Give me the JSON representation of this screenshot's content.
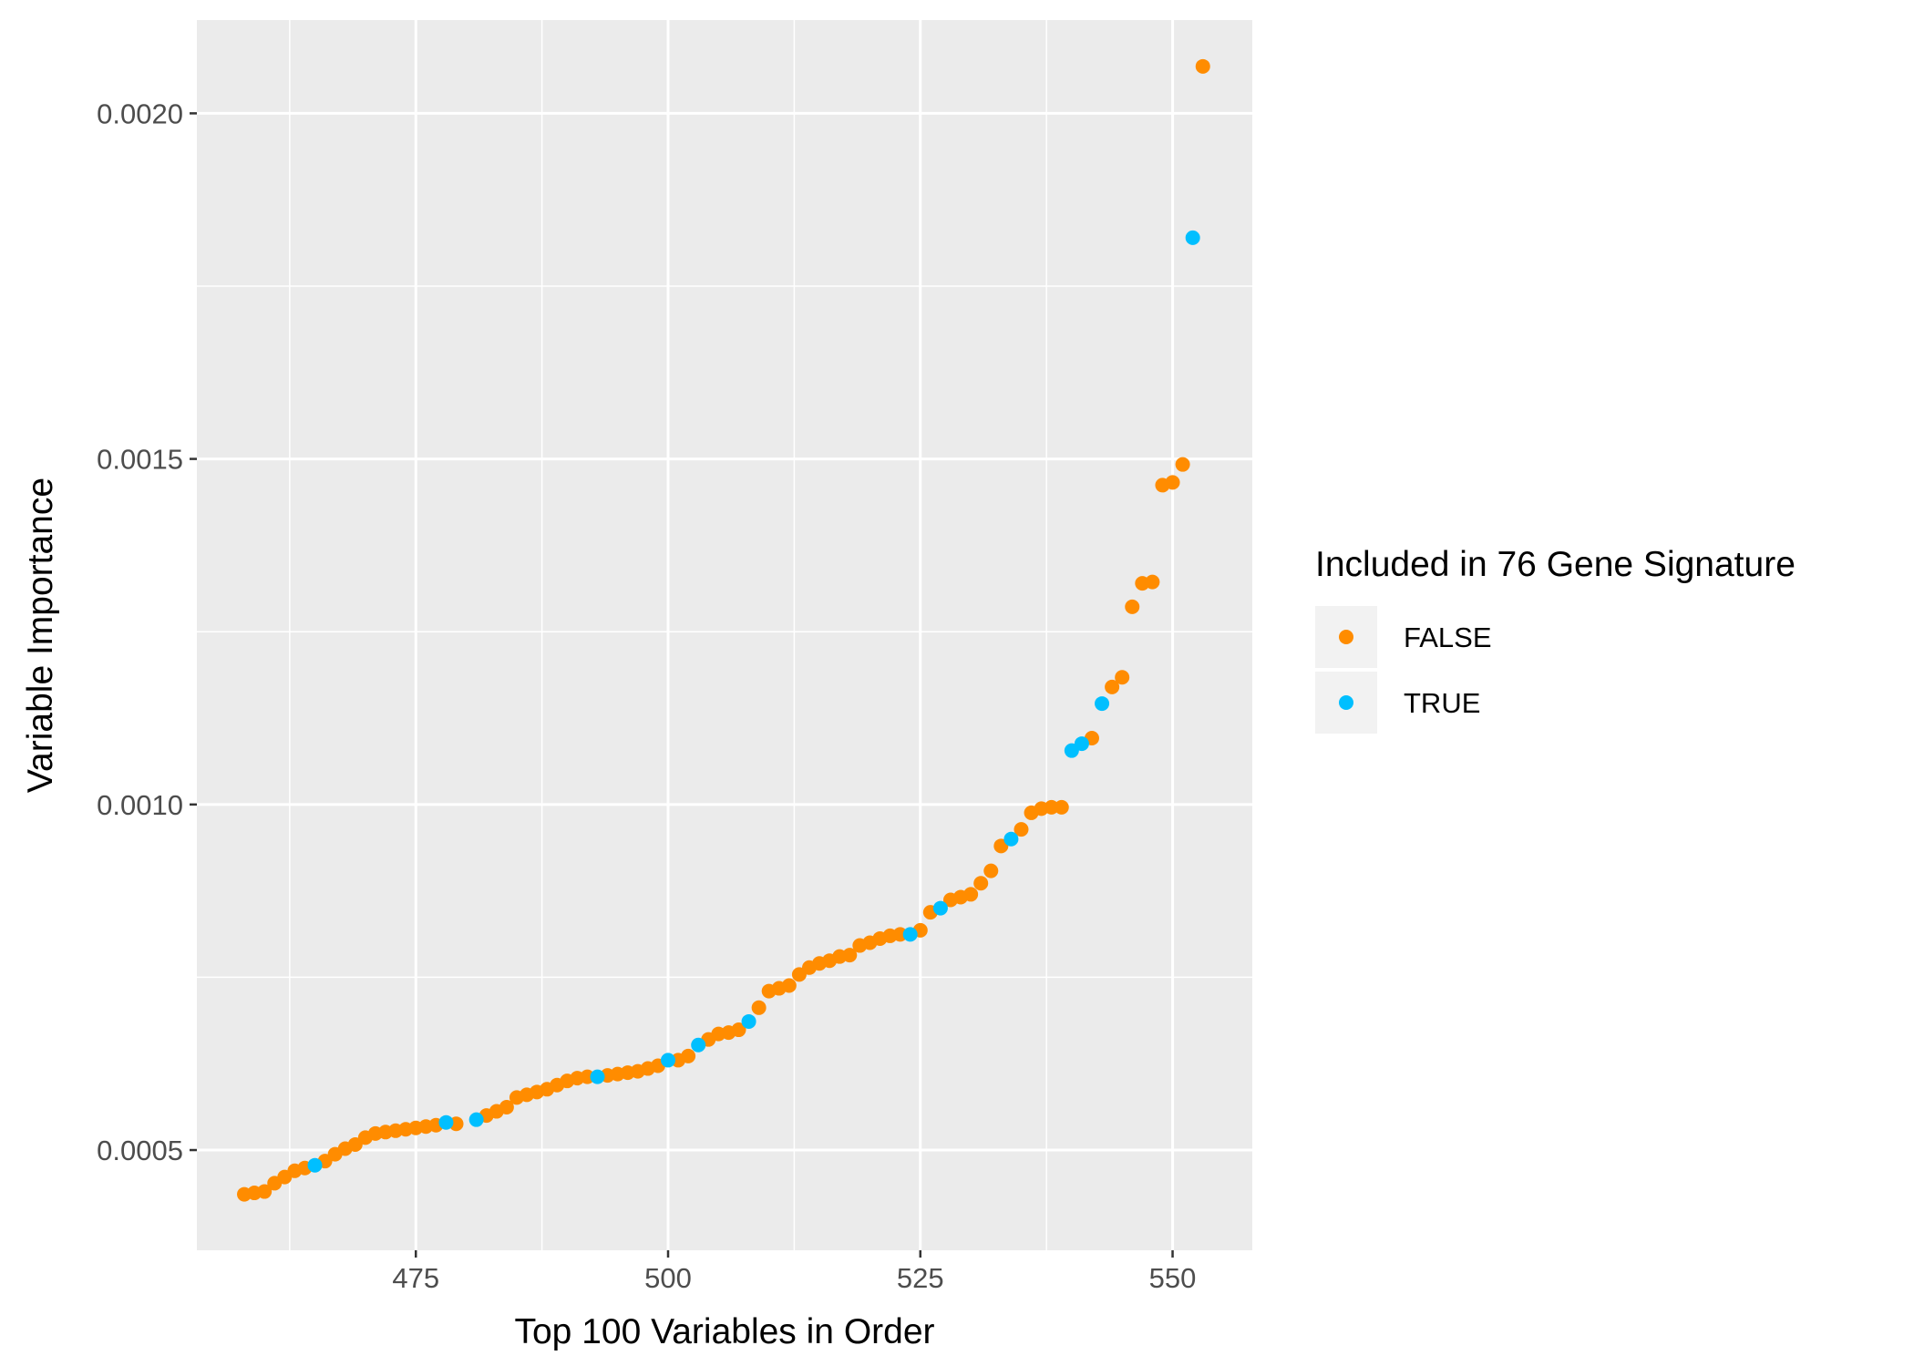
{
  "chart_data": {
    "type": "scatter",
    "xlabel": "Top 100 Variables in Order",
    "ylabel": "Variable Importance",
    "xlim": [
      453.3,
      557.9
    ],
    "ylim": [
      0.000355,
      0.002135
    ],
    "x_ticks": [
      475,
      500,
      525,
      550
    ],
    "x_tick_labels": [
      "475",
      "500",
      "525",
      "550"
    ],
    "x_minor_ticks": [
      462.5,
      487.5,
      512.5,
      537.5
    ],
    "y_ticks": [
      0.0005,
      0.001,
      0.0015,
      0.002
    ],
    "y_tick_labels": [
      "0.0005",
      "0.0010",
      "0.0015",
      "0.0020"
    ],
    "y_minor_ticks": [
      0.00075,
      0.00125,
      0.00175
    ],
    "grid": true,
    "legend": {
      "title": "Included in 76 Gene Signature",
      "position": "right",
      "entries": [
        {
          "label": "FALSE",
          "color": "#FF8C00"
        },
        {
          "label": "TRUE",
          "color": "#00BFFF"
        }
      ]
    },
    "series": [
      {
        "name": "FALSE",
        "color": "#FF8C00",
        "x": [
          458,
          459,
          460,
          461,
          462,
          463,
          464,
          466,
          467,
          468,
          469,
          470,
          471,
          472,
          473,
          474,
          475,
          476,
          477,
          479,
          482,
          483,
          484,
          485,
          486,
          487,
          488,
          489,
          490,
          491,
          492,
          494,
          495,
          496,
          497,
          498,
          499,
          501,
          502,
          504,
          505,
          506,
          507,
          509,
          510,
          511,
          512,
          513,
          514,
          515,
          516,
          517,
          518,
          519,
          520,
          521,
          522,
          523,
          525,
          526,
          528,
          529,
          530,
          531,
          532,
          533,
          535,
          536,
          537,
          538,
          539,
          542,
          544,
          545,
          546,
          547,
          548,
          549,
          550,
          551,
          553
        ],
        "y": [
          0.000436,
          0.000438,
          0.00044,
          0.000452,
          0.000461,
          0.00047,
          0.000474,
          0.000484,
          0.000494,
          0.000502,
          0.000508,
          0.000518,
          0.000524,
          0.000526,
          0.000528,
          0.00053,
          0.000532,
          0.000534,
          0.000536,
          0.000538,
          0.00055,
          0.000556,
          0.000562,
          0.000576,
          0.00058,
          0.000584,
          0.000588,
          0.000594,
          0.0006,
          0.000604,
          0.000606,
          0.000608,
          0.00061,
          0.000612,
          0.000614,
          0.000618,
          0.000622,
          0.00063,
          0.000636,
          0.00066,
          0.000668,
          0.00067,
          0.000674,
          0.000706,
          0.00073,
          0.000734,
          0.000738,
          0.000754,
          0.000764,
          0.00077,
          0.000774,
          0.00078,
          0.000782,
          0.000796,
          0.0008,
          0.000806,
          0.00081,
          0.000812,
          0.000818,
          0.000844,
          0.000862,
          0.000866,
          0.00087,
          0.000886,
          0.000904,
          0.00094,
          0.000964,
          0.000988,
          0.000994,
          0.000996,
          0.000996,
          0.001096,
          0.00117,
          0.001184,
          0.001286,
          0.00132,
          0.001322,
          0.001462,
          0.001466,
          0.001492,
          0.002068
        ]
      },
      {
        "name": "TRUE",
        "color": "#00BFFF",
        "x": [
          465,
          478,
          481,
          493,
          500,
          503,
          508,
          524,
          527,
          534,
          540,
          541,
          543,
          552
        ],
        "y": [
          0.000478,
          0.00054,
          0.000544,
          0.000606,
          0.00063,
          0.000652,
          0.000686,
          0.000812,
          0.00085,
          0.00095,
          0.001078,
          0.001088,
          0.001146,
          0.00182
        ]
      }
    ]
  }
}
